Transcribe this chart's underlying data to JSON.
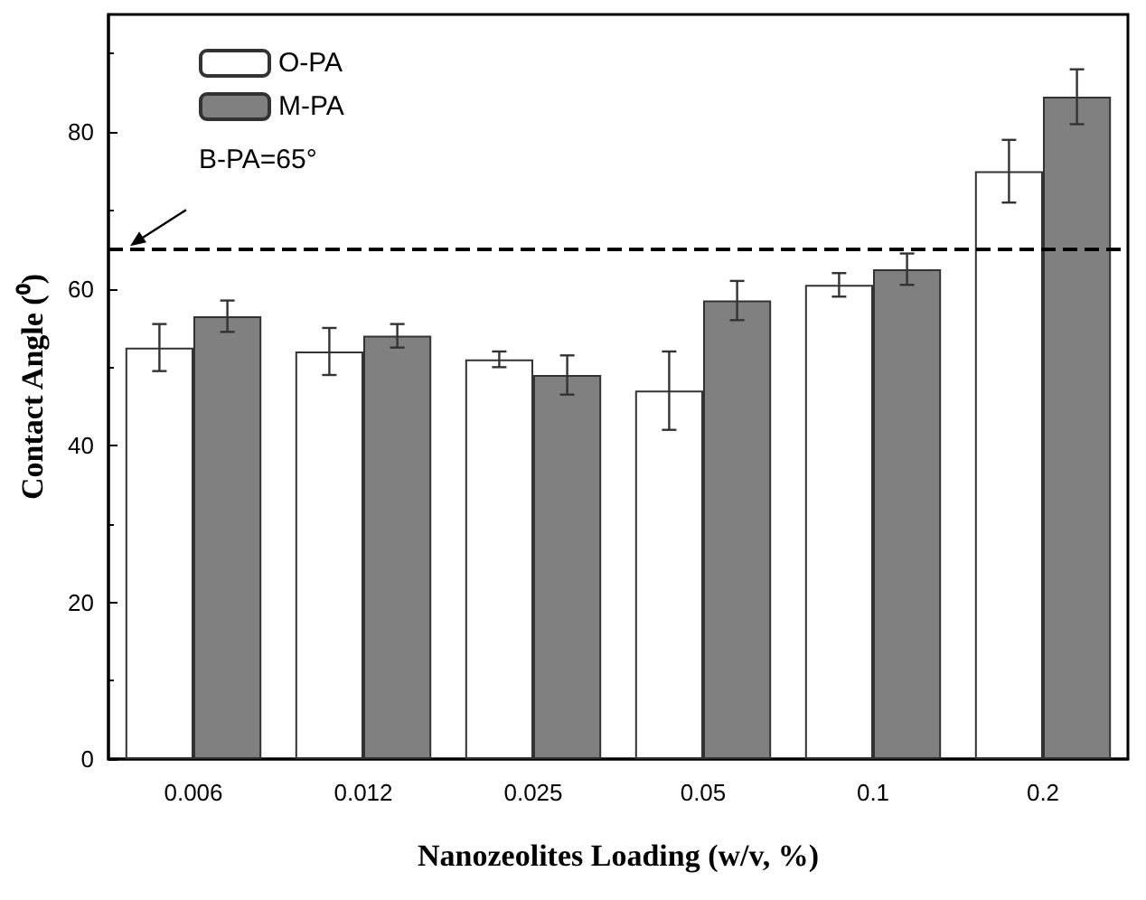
{
  "chart_data": {
    "type": "bar",
    "xlabel": "Nanozeolites Loading (w/v, %)",
    "ylabel": "Contact Angle (⁰)",
    "categories": [
      "0.006",
      "0.012",
      "0.025",
      "0.05",
      "0.1",
      "0.2"
    ],
    "series": [
      {
        "name": "O-PA",
        "color": "#ffffff",
        "values": [
          52.5,
          52,
          51,
          47,
          60.5,
          75
        ],
        "errors": [
          3,
          3,
          1,
          5,
          1.5,
          4
        ]
      },
      {
        "name": "M-PA",
        "color": "#808080",
        "values": [
          56.5,
          54,
          49,
          58.5,
          62.5,
          84.5
        ],
        "errors": [
          2,
          1.5,
          2.5,
          2.5,
          2,
          3.5
        ]
      }
    ],
    "ylim": [
      0,
      95
    ],
    "yticks": [
      0,
      20,
      40,
      60,
      80
    ],
    "ref_lines": [
      {
        "axis": "y",
        "value": 65,
        "label": "B-PA=65°",
        "line_style": "dashed",
        "color": "#000000"
      }
    ],
    "legend": "top left",
    "grid": false
  }
}
